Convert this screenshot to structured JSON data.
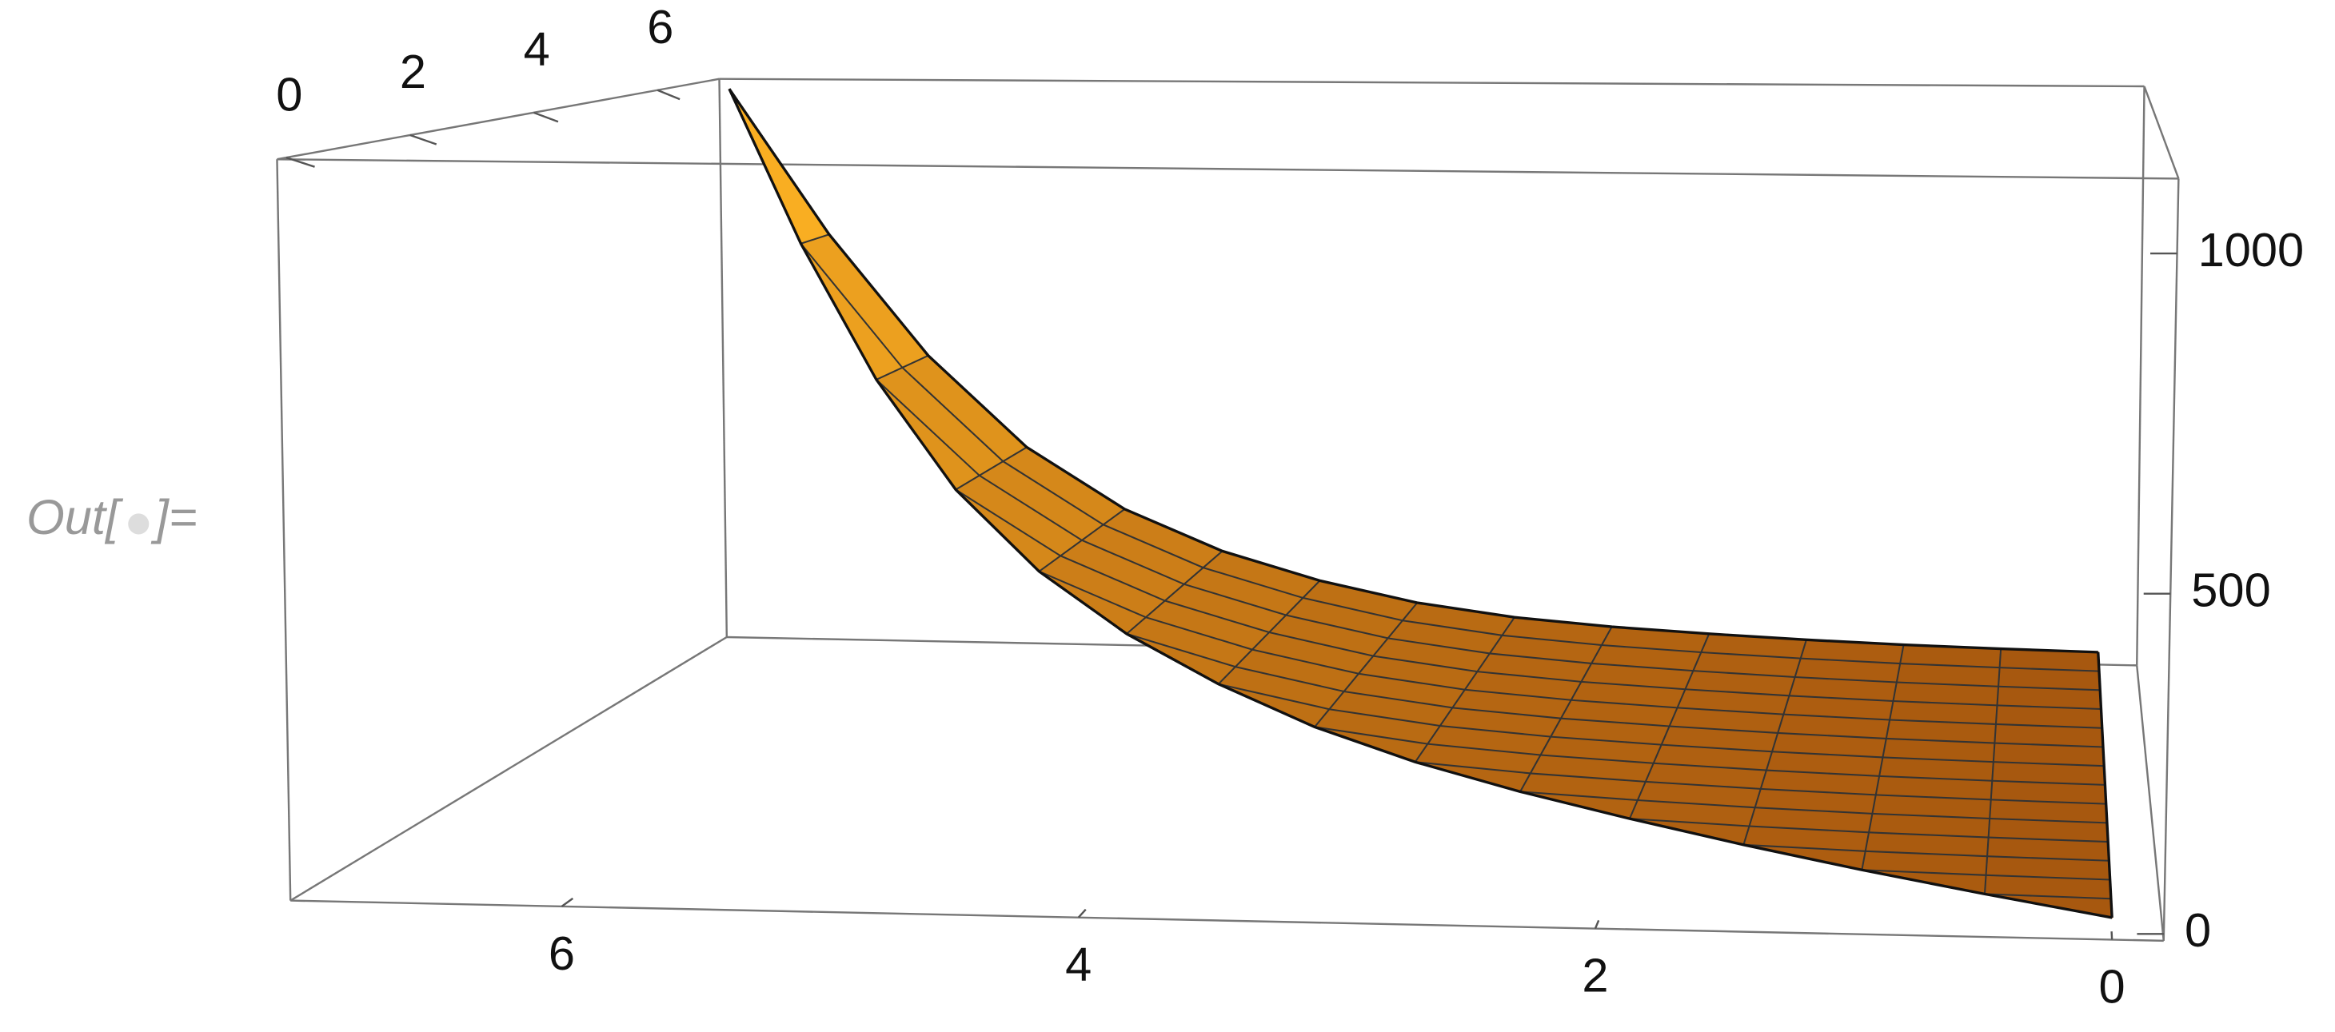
{
  "chart_data": {
    "type": "surface3d",
    "x": [
      0,
      0.5,
      1,
      1.5,
      2,
      2.5,
      3,
      3.5,
      4,
      4.5,
      5,
      5.5,
      6,
      6.5,
      7
    ],
    "z": [
      14,
      17,
      21,
      27,
      35,
      45,
      60,
      85,
      125,
      180,
      260,
      380,
      560,
      800,
      1090
    ],
    "xlim": [
      -0.2,
      7.05
    ],
    "ylim": [
      -0.15,
      7
    ],
    "zlim": [
      -10,
      1110
    ],
    "xticks": [
      0,
      2,
      4,
      6
    ],
    "yticks": [
      0,
      2,
      4,
      6
    ],
    "zticks": [
      0,
      500,
      1000
    ],
    "color_low": "#a4540e",
    "color_high": "#ffb524",
    "cell_label": {
      "open": "Out[",
      "close": "]="
    }
  }
}
